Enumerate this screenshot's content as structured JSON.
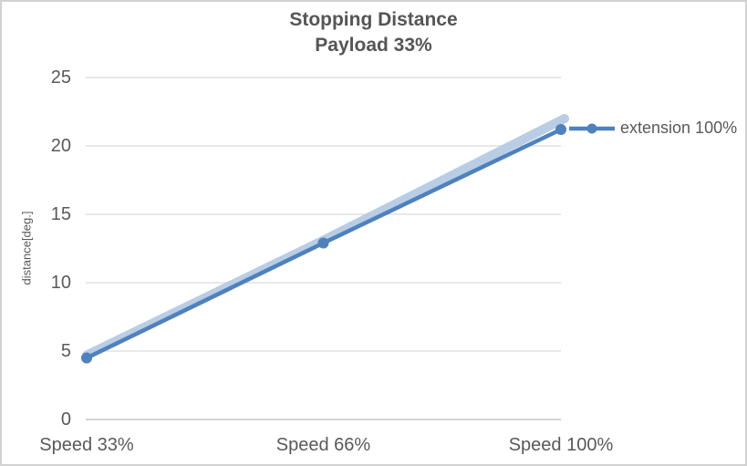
{
  "window": {
    "background": "#ffffff",
    "border_color": "#d2d2d2"
  },
  "chart_data": {
    "type": "line",
    "title": "Stopping Distance",
    "subtitle": "Payload 33%",
    "ylabel": "distance[deg.]",
    "xlabel": "",
    "categories": [
      "Speed 33%",
      "Speed 66%",
      "Speed 100%"
    ],
    "series": [
      {
        "name": "",
        "values": [
          4.7,
          13.1,
          22.0
        ],
        "color": "#B9CDE5",
        "line_width": 10,
        "markers": false,
        "show_in_legend": false
      },
      {
        "name": "extension 100%",
        "values": [
          4.5,
          12.9,
          21.2
        ],
        "color": "#4F81BD",
        "line_width": 4.5,
        "markers": true,
        "show_in_legend": true
      }
    ],
    "ylim": [
      0,
      25
    ],
    "yticks": [
      0,
      5,
      10,
      15,
      20,
      25
    ],
    "grid": true,
    "gridline_color": "#D9D9D9",
    "axis_line_color": "#C6C6C6",
    "text_color": "#595959",
    "legend_position": "right"
  },
  "legend": {
    "label": "extension 100%"
  }
}
